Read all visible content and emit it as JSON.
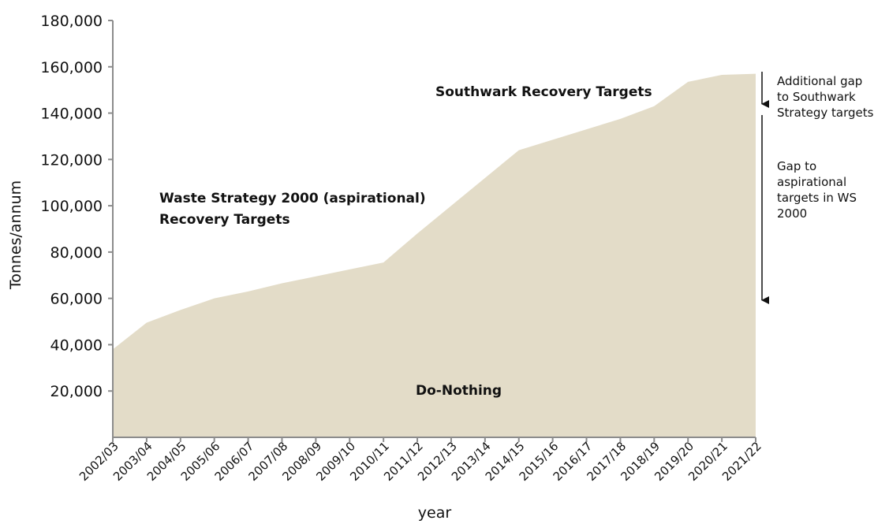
{
  "colors": {
    "area_fill": "#e3dcc8",
    "axis": "#8c8c8c",
    "text": "#111111",
    "arrow": "#111111"
  },
  "chart_data": {
    "type": "area",
    "xlabel": "year",
    "ylabel": "Tonnes/annum",
    "ylim": [
      0,
      180000
    ],
    "yticks": [
      20000,
      40000,
      60000,
      80000,
      100000,
      120000,
      140000,
      160000,
      180000
    ],
    "ytick_labels": [
      "20,000",
      "40,000",
      "60,000",
      "80,000",
      "100,000",
      "120,000",
      "140,000",
      "160,000",
      "180,000"
    ],
    "categories": [
      "2002/03",
      "2003/04",
      "2004/05",
      "2005/06",
      "2006/07",
      "2007/08",
      "2008/09",
      "2009/10",
      "2010/11",
      "2011/12",
      "2012/13",
      "2013/14",
      "2014/15",
      "2015/16",
      "2016/17",
      "2017/18",
      "2018/19",
      "2019/20",
      "2020/21",
      "2021/22"
    ],
    "series": [
      {
        "values": [
          38000,
          49500,
          55000,
          60000,
          63000,
          66500,
          69500,
          72500,
          75500,
          88000,
          100000,
          112000,
          124000,
          128500,
          133000,
          137500,
          143000,
          153500,
          156500,
          157000
        ]
      }
    ],
    "grid": false,
    "annotations": {
      "southwark": "Southwark Recovery Targets",
      "ws_line1": "Waste Strategy 2000 (aspirational)",
      "ws_line2": "Recovery Targets",
      "do_nothing": "Do-Nothing",
      "gap_southwark": [
        "Additional gap",
        "to Southwark",
        "Strategy targets"
      ],
      "gap_ws": [
        "Gap to",
        "aspirational",
        "targets in WS",
        "2000"
      ]
    }
  }
}
